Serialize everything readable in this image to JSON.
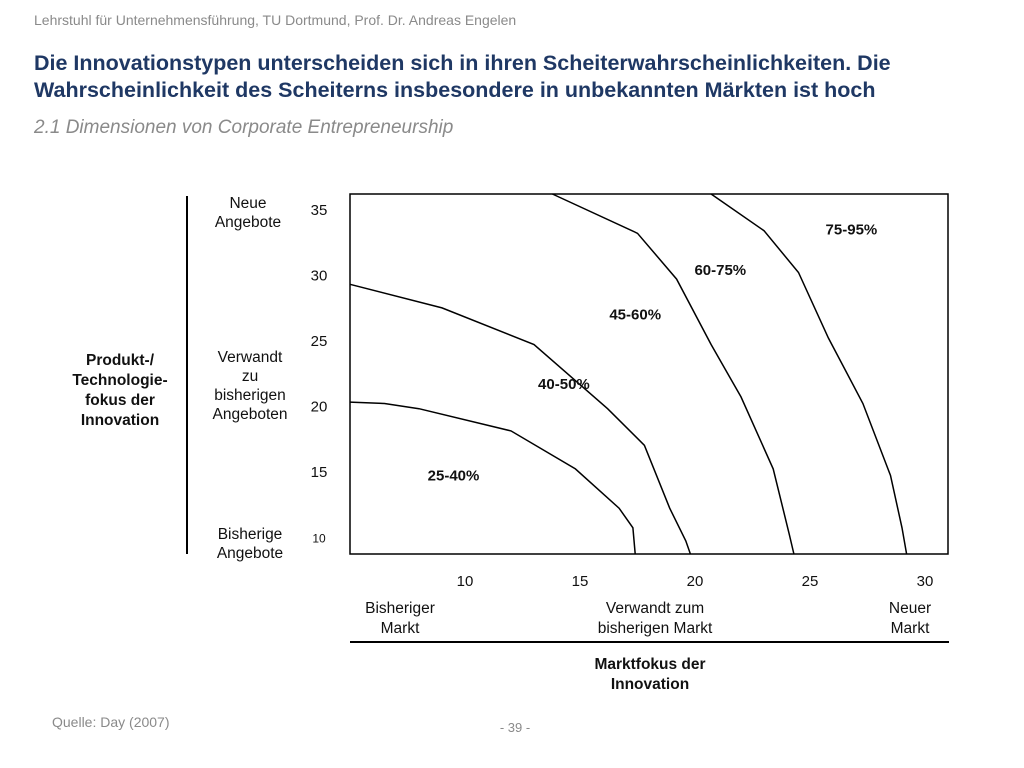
{
  "header": {
    "text": "Lehrstuhl für Unternehmensführung, TU Dortmund,  Prof. Dr. Andreas Engelen"
  },
  "title": {
    "line1": "Die Innovationstypen unterscheiden sich in ihren Scheiterwahrscheinlichkeiten. Die",
    "line2": "Wahrscheinlichkeit des Scheiterns insbesondere in unbekannten Märkten ist hoch"
  },
  "subtitle": "2.1 Dimensionen von Corporate Entrepreneurship",
  "y_axis": {
    "label_lines": [
      "Produkt-/",
      "Technologie-",
      "fokus der",
      "Innovation"
    ],
    "categories": [
      {
        "lines": [
          "Neue",
          "Angebote"
        ]
      },
      {
        "lines": [
          "Verwandt",
          "zu",
          "bisherigen",
          "Angeboten"
        ]
      },
      {
        "lines": [
          "Bisherige",
          "Angebote"
        ]
      }
    ]
  },
  "x_axis": {
    "label_lines": [
      "Marktfokus der",
      "Innovation"
    ],
    "categories": [
      {
        "lines": [
          "Bisheriger",
          "Markt"
        ]
      },
      {
        "lines": [
          "Verwandt zum",
          "bisherigen Markt"
        ]
      },
      {
        "lines": [
          "Neuer",
          "Markt"
        ]
      }
    ]
  },
  "chart_data": {
    "type": "line",
    "title": "",
    "xlabel": "Marktfokus der Innovation",
    "ylabel": "Produkt-/ Technologie-fokus der Innovation",
    "xlim": [
      5,
      31
    ],
    "ylim": [
      8.5,
      36
    ],
    "x_ticks": [
      10,
      15,
      20,
      25,
      30
    ],
    "x_tick_labels": [
      "10",
      "15",
      "20",
      "25",
      "30"
    ],
    "y_ticks": [
      35,
      30,
      25,
      20,
      15,
      10
    ],
    "y_tick_labels": [
      "35",
      "30",
      "25",
      "20",
      "15",
      "10"
    ],
    "series": [
      {
        "name": "boundary-25-40-40-50",
        "x": [
          5,
          6.5,
          8,
          12,
          14.8,
          16.7,
          17.3,
          17.4
        ],
        "y": [
          20.1,
          20.0,
          19.6,
          17.9,
          15.0,
          12.0,
          10.5,
          8.5
        ]
      },
      {
        "name": "boundary-40-50-45-60",
        "x": [
          5,
          9,
          13,
          16.2,
          17.8,
          18.9,
          19.6,
          19.8
        ],
        "y": [
          29.1,
          27.3,
          24.5,
          19.6,
          16.8,
          12.0,
          9.5,
          8.5
        ]
      },
      {
        "name": "boundary-45-60-60-75",
        "x": [
          13.8,
          17.5,
          19.2,
          20.7,
          22.0,
          23.4,
          24.1,
          24.3
        ],
        "y": [
          36,
          33.0,
          29.5,
          24.5,
          20.5,
          15.0,
          10.0,
          8.5
        ]
      },
      {
        "name": "boundary-60-75-75-95",
        "x": [
          20.7,
          23.0,
          24.5,
          25.8,
          27.3,
          28.5,
          29.0,
          29.2
        ],
        "y": [
          36,
          33.2,
          30.0,
          25.0,
          20.0,
          14.5,
          10.5,
          8.5
        ]
      }
    ],
    "region_labels": [
      {
        "text": "25-40%",
        "x": 9.5,
        "y": 14.1
      },
      {
        "text": "40-50%",
        "x": 14.3,
        "y": 21.1
      },
      {
        "text": "45-60%",
        "x": 17.4,
        "y": 26.4
      },
      {
        "text": "60-75%",
        "x": 21.1,
        "y": 29.8
      },
      {
        "text": "75-95%",
        "x": 26.8,
        "y": 32.9
      }
    ]
  },
  "source": "Quelle: Day (2007)",
  "page_number": "- 39 -"
}
